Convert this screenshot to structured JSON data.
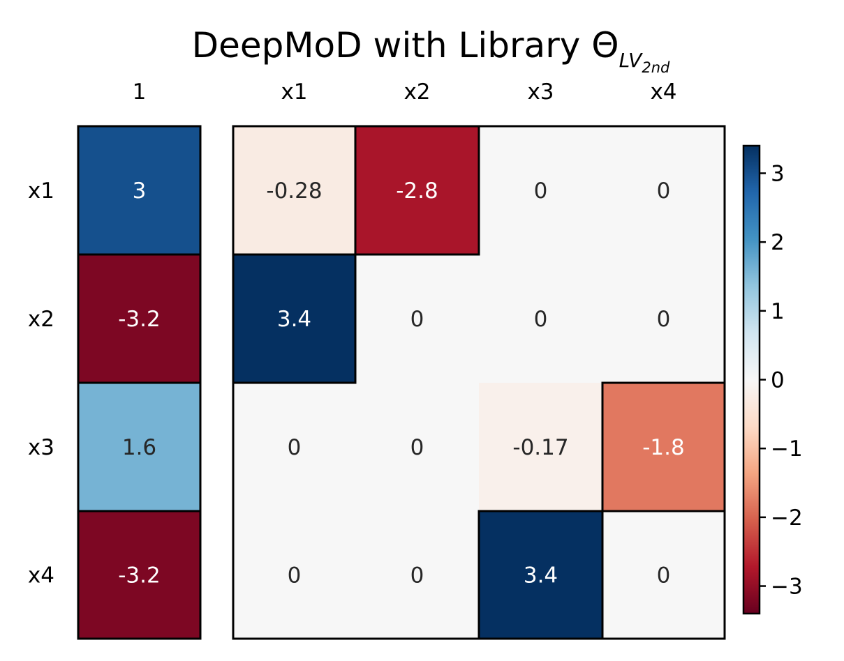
{
  "chart_data": [
    {
      "type": "heatmap",
      "title": "DeepMoD with Library Θ",
      "title_subscript": "LV",
      "title_sub_subscript": "2nd",
      "x_labels": [
        "1"
      ],
      "y_labels": [
        "x1",
        "x2",
        "x3",
        "x4"
      ],
      "values": [
        [
          3
        ],
        [
          -3.2
        ],
        [
          1.6
        ],
        [
          -3.2
        ]
      ],
      "cell_labels": [
        [
          "3"
        ],
        [
          "-3.2"
        ],
        [
          "1.6"
        ],
        [
          "-3.2"
        ]
      ],
      "highlighted": [
        [
          true
        ],
        [
          true
        ],
        [
          true
        ],
        [
          true
        ]
      ]
    },
    {
      "type": "heatmap",
      "x_labels": [
        "x1",
        "x2",
        "x3",
        "x4"
      ],
      "y_labels": [
        "x1",
        "x2",
        "x3",
        "x4"
      ],
      "values": [
        [
          -0.28,
          -2.8,
          0,
          0
        ],
        [
          3.4,
          0,
          0,
          0
        ],
        [
          0,
          0,
          -0.17,
          -1.8
        ],
        [
          0,
          0,
          3.4,
          0
        ]
      ],
      "cell_labels": [
        [
          "-0.28",
          "-2.8",
          "0",
          "0"
        ],
        [
          "3.4",
          "0",
          "0",
          "0"
        ],
        [
          "0",
          "0",
          "-0.17",
          "-1.8"
        ],
        [
          "0",
          "0",
          "3.4",
          "0"
        ]
      ],
      "highlighted": [
        [
          true,
          true,
          false,
          false
        ],
        [
          true,
          false,
          false,
          false
        ],
        [
          false,
          false,
          false,
          true
        ],
        [
          false,
          false,
          true,
          false
        ]
      ]
    }
  ],
  "colorbar": {
    "colormap": "RdBu",
    "vmin": -3.4,
    "vmax": 3.4,
    "ticks": [
      3,
      2,
      1,
      0,
      -1,
      -2,
      -3
    ],
    "tick_labels": [
      "3",
      "2",
      "1",
      "0",
      "−1",
      "−2",
      "−3"
    ]
  }
}
